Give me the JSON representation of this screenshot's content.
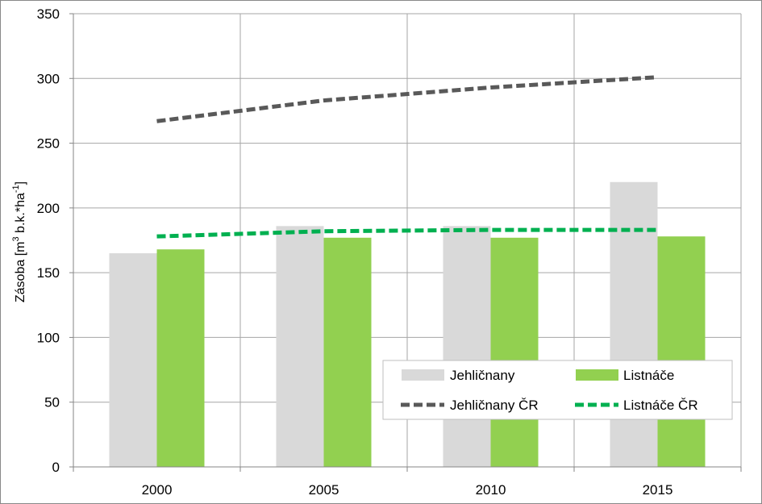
{
  "chart_data": {
    "type": "bar",
    "categories": [
      "2000",
      "2005",
      "2010",
      "2015"
    ],
    "series": [
      {
        "name": "Jehličnany",
        "kind": "bar",
        "color": "#d9d9d9",
        "values": [
          165,
          186,
          186,
          220
        ]
      },
      {
        "name": "Listnáče",
        "kind": "bar",
        "color": "#92d050",
        "values": [
          168,
          177,
          177,
          178
        ]
      },
      {
        "name": "Jehličnany ČR",
        "kind": "line",
        "style": "dashed",
        "color": "#595959",
        "values": [
          267,
          283,
          293,
          301
        ]
      },
      {
        "name": "Listnáče ČR",
        "kind": "line",
        "style": "dashed",
        "color": "#00b050",
        "values": [
          178,
          182,
          183,
          183
        ]
      }
    ],
    "ylabel": {
      "prefix": "Zásoba [m",
      "sup1": "3",
      "middle": " b.k.*ha",
      "sup2": "-1",
      "suffix": "]"
    },
    "ylim": [
      0,
      350
    ],
    "yticks": [
      "0",
      "50",
      "100",
      "150",
      "200",
      "250",
      "300",
      "350"
    ],
    "grid": true,
    "legend_position": "bottom-right inside"
  }
}
